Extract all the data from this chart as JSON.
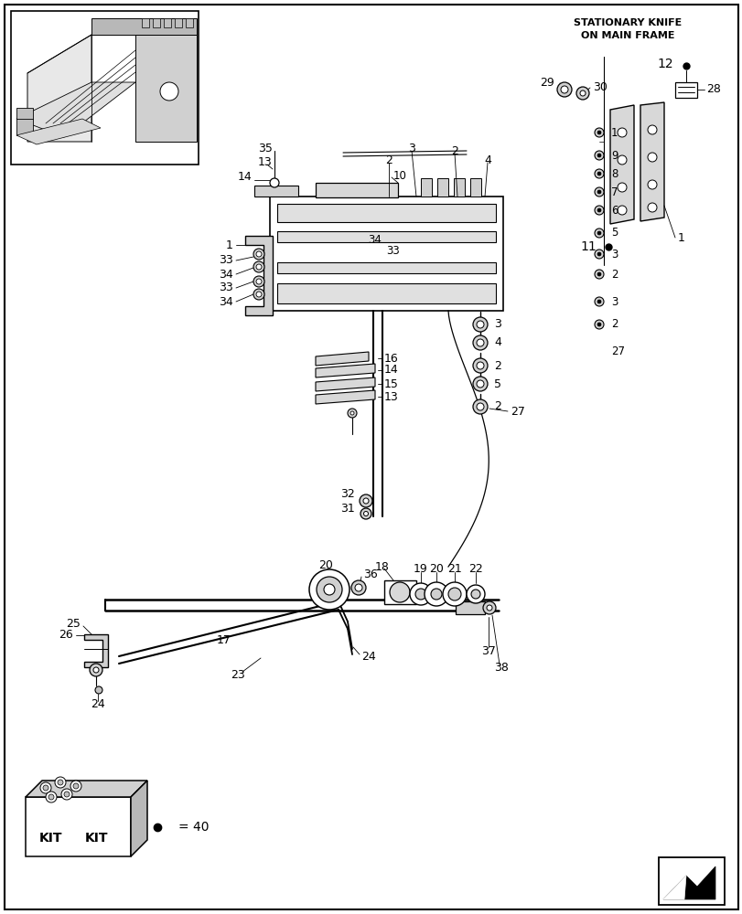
{
  "bg_color": "#ffffff",
  "stationary_knife_label": "STATIONARY KNIFE\nON MAIN FRAME",
  "fig_width": 8.12,
  "fig_height": 10.0,
  "dpi": 100,
  "border_lw": 1.5,
  "line_color": "#000000",
  "gray_fill": "#c8c8c8",
  "light_gray": "#e8e8e8",
  "mid_gray": "#a0a0a0"
}
